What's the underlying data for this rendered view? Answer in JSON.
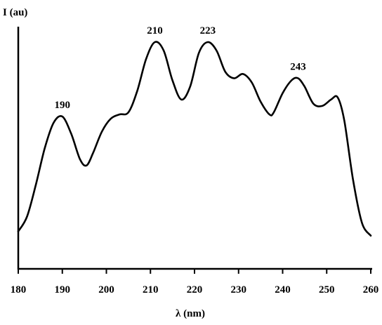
{
  "chart_data": {
    "type": "line",
    "title": "",
    "ylabel": "I (au)",
    "xlabel": "λ (nm)",
    "xlim": [
      180,
      260
    ],
    "ylim": [
      0,
      1
    ],
    "x_ticks": [
      180,
      190,
      200,
      210,
      220,
      230,
      240,
      250,
      260
    ],
    "y_ticks": [],
    "grid": false,
    "series": [
      {
        "x": [
          180,
          182,
          184,
          186,
          188,
          190,
          192,
          194,
          195.5,
          197,
          199,
          201,
          203,
          205,
          207,
          209,
          211,
          213,
          215,
          217,
          219,
          221,
          223,
          225,
          227,
          229,
          231,
          233,
          235,
          237,
          238,
          240,
          242,
          243.5,
          245,
          247,
          249,
          251,
          252.5,
          254,
          256,
          258,
          260
        ],
        "y": [
          0.11,
          0.18,
          0.33,
          0.5,
          0.62,
          0.65,
          0.57,
          0.45,
          0.42,
          0.48,
          0.58,
          0.64,
          0.66,
          0.67,
          0.77,
          0.92,
          1.0,
          0.96,
          0.82,
          0.73,
          0.79,
          0.95,
          1.0,
          0.96,
          0.86,
          0.83,
          0.85,
          0.81,
          0.72,
          0.66,
          0.67,
          0.76,
          0.82,
          0.83,
          0.79,
          0.71,
          0.7,
          0.73,
          0.74,
          0.63,
          0.35,
          0.15,
          0.09
        ]
      }
    ],
    "annotations": [
      {
        "text": "190",
        "x": 190,
        "y": 0.65
      },
      {
        "text": "210",
        "x": 211,
        "y": 1.0
      },
      {
        "text": "223",
        "x": 223,
        "y": 1.0
      },
      {
        "text": "243",
        "x": 243.5,
        "y": 0.83
      }
    ]
  }
}
